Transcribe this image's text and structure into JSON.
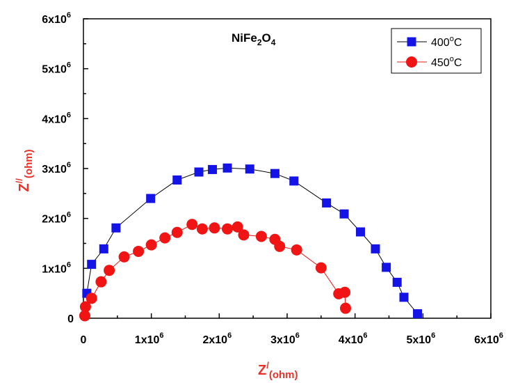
{
  "chart_data": {
    "type": "scatter",
    "title": "NiFe",
    "title_sub1": "2",
    "title_mid": "O",
    "title_sub2": "4",
    "xlabel_main": "Z",
    "xlabel_sup": "/",
    "xlabel_sub": "(ohm)",
    "ylabel_main": "Z",
    "ylabel_sup": "//",
    "ylabel_sub": "(ohm)",
    "xlim": [
      0,
      6000000
    ],
    "ylim": [
      0,
      6000000
    ],
    "x_ticks": [
      {
        "value": 0,
        "base": "0",
        "exp": ""
      },
      {
        "value": 1000000,
        "base": "1x10",
        "exp": "6"
      },
      {
        "value": 2000000,
        "base": "2x10",
        "exp": "6"
      },
      {
        "value": 3000000,
        "base": "3x10",
        "exp": "6"
      },
      {
        "value": 4000000,
        "base": "4x10",
        "exp": "6"
      },
      {
        "value": 5000000,
        "base": "5x10",
        "exp": "6"
      },
      {
        "value": 6000000,
        "base": "6x10",
        "exp": "6"
      }
    ],
    "y_ticks": [
      {
        "value": 0,
        "base": "0",
        "exp": ""
      },
      {
        "value": 1000000,
        "base": "1x10",
        "exp": "6"
      },
      {
        "value": 2000000,
        "base": "2x10",
        "exp": "6"
      },
      {
        "value": 3000000,
        "base": "3x10",
        "exp": "6"
      },
      {
        "value": 4000000,
        "base": "4x10",
        "exp": "6"
      },
      {
        "value": 5000000,
        "base": "5x10",
        "exp": "6"
      },
      {
        "value": 6000000,
        "base": "6x10",
        "exp": "6"
      }
    ],
    "grid": false,
    "legend_position": "top-right",
    "series": [
      {
        "name": "400",
        "name_sup": "o",
        "name_unit": "C",
        "marker": "square",
        "marker_color": "#1414e6",
        "line_color": "#000000",
        "points": [
          [
            50000,
            500000
          ],
          [
            120000,
            1080000
          ],
          [
            300000,
            1390000
          ],
          [
            480000,
            1810000
          ],
          [
            990000,
            2400000
          ],
          [
            1380000,
            2770000
          ],
          [
            1700000,
            2930000
          ],
          [
            1900000,
            2980000
          ],
          [
            2120000,
            3010000
          ],
          [
            2450000,
            2990000
          ],
          [
            2820000,
            2900000
          ],
          [
            3100000,
            2750000
          ],
          [
            3580000,
            2310000
          ],
          [
            3840000,
            2090000
          ],
          [
            4080000,
            1730000
          ],
          [
            4300000,
            1390000
          ],
          [
            4460000,
            1020000
          ],
          [
            4620000,
            720000
          ],
          [
            4720000,
            420000
          ],
          [
            4920000,
            90000
          ]
        ]
      },
      {
        "name": "450",
        "name_sup": "o",
        "name_unit": "C",
        "marker": "circle",
        "marker_color": "#f01414",
        "line_color": "#f01414",
        "points": [
          [
            20000,
            50000
          ],
          [
            30000,
            230000
          ],
          [
            120000,
            400000
          ],
          [
            260000,
            730000
          ],
          [
            380000,
            960000
          ],
          [
            600000,
            1230000
          ],
          [
            810000,
            1340000
          ],
          [
            1000000,
            1470000
          ],
          [
            1200000,
            1610000
          ],
          [
            1380000,
            1720000
          ],
          [
            1600000,
            1880000
          ],
          [
            1750000,
            1790000
          ],
          [
            1930000,
            1810000
          ],
          [
            2120000,
            1790000
          ],
          [
            2270000,
            1830000
          ],
          [
            2360000,
            1670000
          ],
          [
            2620000,
            1640000
          ],
          [
            2820000,
            1580000
          ],
          [
            2890000,
            1440000
          ],
          [
            3140000,
            1370000
          ],
          [
            3500000,
            1010000
          ],
          [
            3760000,
            490000
          ],
          [
            3850000,
            520000
          ],
          [
            3860000,
            200000
          ]
        ]
      }
    ]
  }
}
